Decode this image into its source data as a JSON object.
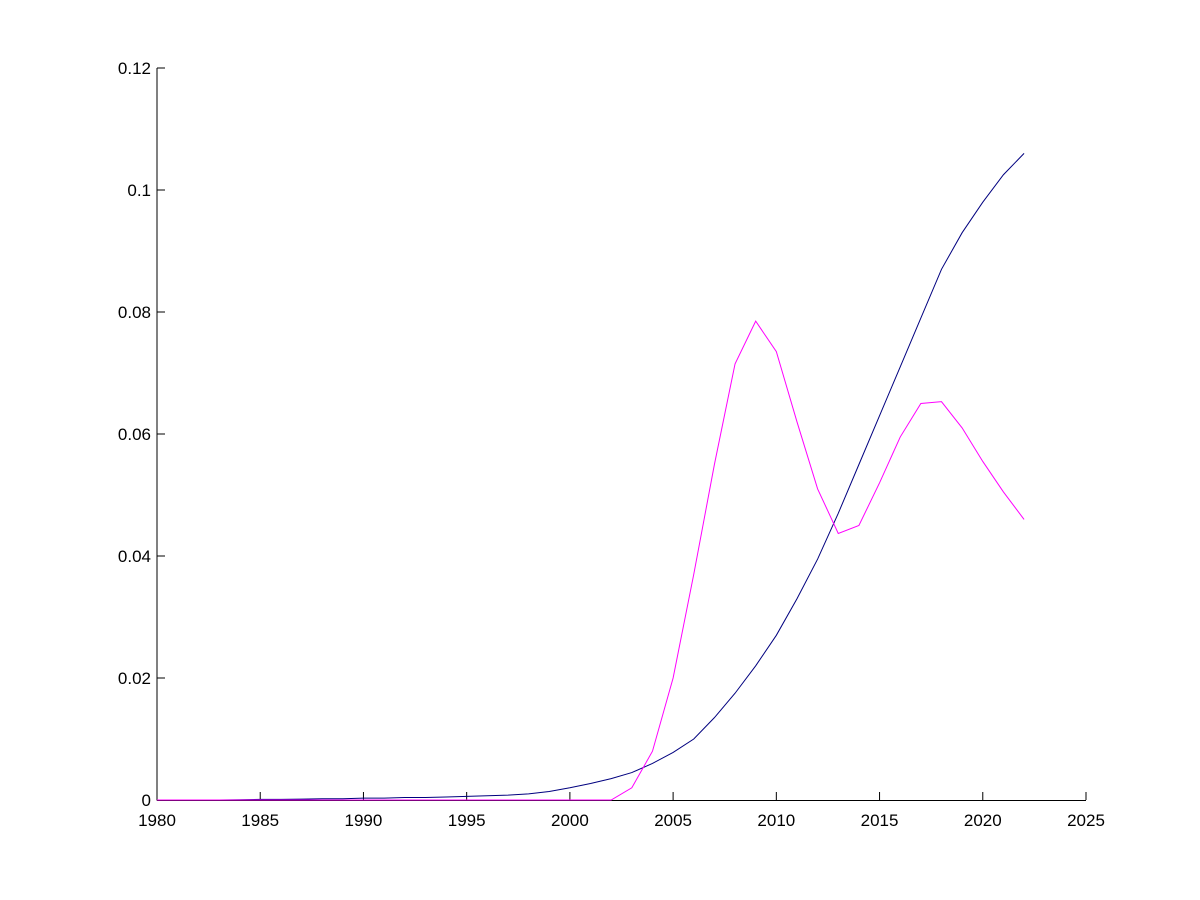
{
  "chart_data": {
    "type": "line",
    "x": [
      1980,
      1981,
      1982,
      1983,
      1984,
      1985,
      1986,
      1987,
      1988,
      1989,
      1990,
      1991,
      1992,
      1993,
      1994,
      1995,
      1996,
      1997,
      1998,
      1999,
      2000,
      2001,
      2002,
      2003,
      2004,
      2005,
      2006,
      2007,
      2008,
      2009,
      2010,
      2011,
      2012,
      2013,
      2014,
      2015,
      2016,
      2017,
      2018,
      2019,
      2020,
      2021,
      2022
    ],
    "series": [
      {
        "color": "#00007f",
        "values": [
          0,
          0,
          0,
          0,
          5e-05,
          0.0001,
          0.0001,
          0.00015,
          0.0002,
          0.0002,
          0.0003,
          0.0003,
          0.0004,
          0.0004,
          0.0005,
          0.0006,
          0.0007,
          0.0008,
          0.001,
          0.0014,
          0.002,
          0.0027,
          0.0035,
          0.0045,
          0.006,
          0.0078,
          0.01,
          0.0135,
          0.0175,
          0.022,
          0.027,
          0.033,
          0.0395,
          0.047,
          0.055,
          0.063,
          0.071,
          0.079,
          0.087,
          0.093,
          0.098,
          0.1025,
          0.106
        ]
      },
      {
        "color": "#ff00ff",
        "values": [
          0,
          0,
          0,
          0,
          0,
          0,
          0,
          0,
          0,
          0,
          0,
          0,
          0,
          0,
          0,
          0,
          0,
          0,
          0,
          0,
          0,
          0,
          0,
          0.002,
          0.008,
          0.02,
          0.037,
          0.055,
          0.0715,
          0.0785,
          0.0735,
          0.062,
          0.051,
          0.0437,
          0.045,
          0.052,
          0.0595,
          0.065,
          0.0653,
          0.061,
          0.0555,
          0.0505,
          0.046
        ]
      }
    ],
    "xlim": [
      1980,
      2025
    ],
    "xticks": [
      1980,
      1985,
      1990,
      1995,
      2000,
      2005,
      2010,
      2015,
      2020,
      2025
    ],
    "ylim": [
      0,
      0.12
    ],
    "yticks": [
      0,
      0.02,
      0.04,
      0.06,
      0.08,
      0.1,
      0.12
    ],
    "grid": false
  }
}
